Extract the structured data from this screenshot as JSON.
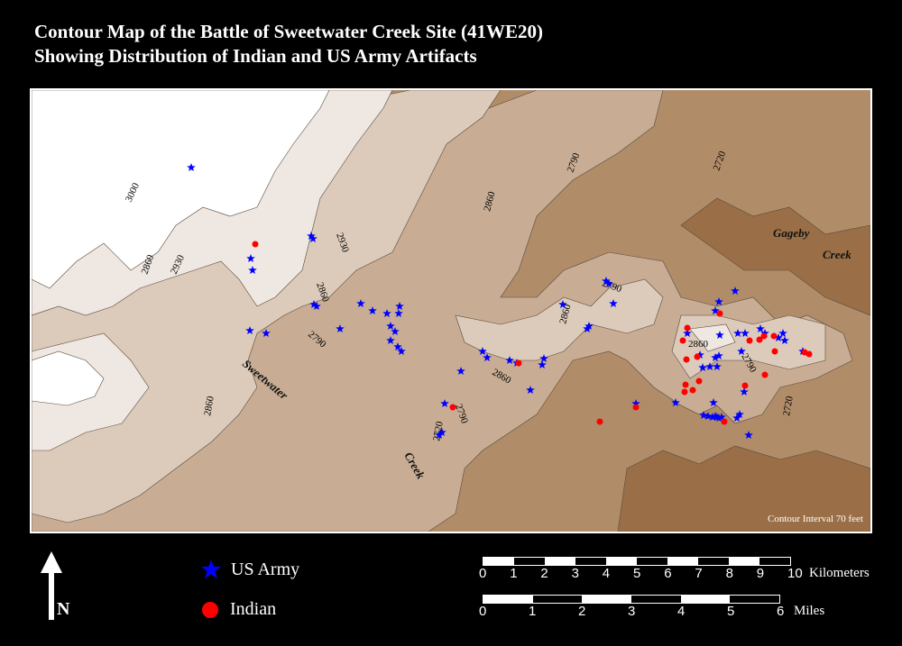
{
  "title": {
    "line1": "Contour Map of the Battle of Sweetwater Creek Site (41WE20)",
    "line2": "Showing Distribution of Indian and US Army Artifacts"
  },
  "map": {
    "contour_labels": [
      "3000",
      "2930",
      "2860",
      "2930",
      "2860",
      "2790",
      "2860",
      "2790",
      "2860",
      "2720",
      "2790",
      "2860",
      "2860",
      "2790",
      "2720",
      "2860",
      "2790",
      "2720"
    ],
    "features": {
      "sweetwater": "Sweetwater",
      "creek1": "Creek",
      "gageby": "Gageby",
      "creek2": "Creek"
    },
    "contour_interval": "Contour Interval 70 feet",
    "colors": {
      "elev_highest": "#ffffff",
      "elev_2930": "#efe8e2",
      "elev_2860": "#dccbbb",
      "elev_2790": "#c8ad94",
      "elev_2720": "#b08c69",
      "elev_low": "#9a6f47",
      "us_army": "#0000ff",
      "indian": "#ff0000"
    }
  },
  "legend": {
    "north_label": "N",
    "us_army": {
      "label": "US Army",
      "icon": "blue-star-icon",
      "color": "#0000ff"
    },
    "indian": {
      "label": "Indian",
      "icon": "red-dot-icon",
      "color": "#ff0000"
    }
  },
  "scale": {
    "km_ticks": [
      "0",
      "1",
      "2",
      "3",
      "4",
      "5",
      "6",
      "7",
      "8",
      "9",
      "10"
    ],
    "km_unit": "Kilometers",
    "mi_ticks": [
      "0",
      "1",
      "2",
      "3",
      "4",
      "5",
      "6"
    ],
    "mi_unit": "Miles"
  }
}
